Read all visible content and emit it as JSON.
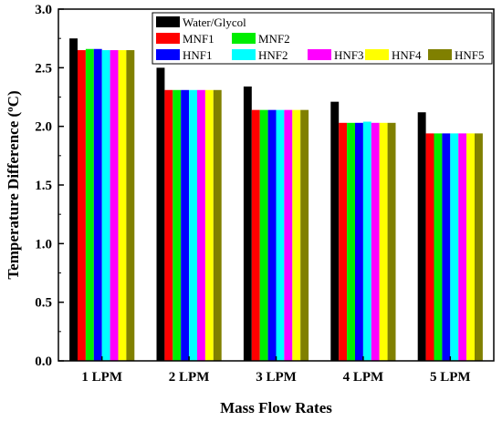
{
  "chart_data": {
    "type": "bar",
    "title": "",
    "xlabel": "Mass Flow Rates",
    "ylabel": "Temperature Difference (",
    "ylabel_sup": "o",
    "ylabel_unit": "C)",
    "categories": [
      "1 LPM",
      "2 LPM",
      "3 LPM",
      "4 LPM",
      "5 LPM"
    ],
    "ylim": [
      0.0,
      3.0
    ],
    "yticks": [
      "0.0",
      "0.5",
      "1.0",
      "1.5",
      "2.0",
      "2.5",
      "3.0"
    ],
    "grid": false,
    "legend_position": "top-right",
    "series": [
      {
        "name": "Water/Glycol",
        "color": "#000000",
        "values": [
          2.75,
          2.5,
          2.34,
          2.21,
          2.12
        ]
      },
      {
        "name": "MNF1",
        "color": "#ff0000",
        "values": [
          2.65,
          2.31,
          2.14,
          2.03,
          1.94
        ]
      },
      {
        "name": "MNF2",
        "color": "#00ee00",
        "values": [
          2.66,
          2.31,
          2.14,
          2.03,
          1.94
        ]
      },
      {
        "name": "HNF1",
        "color": "#0000ff",
        "values": [
          2.66,
          2.31,
          2.14,
          2.03,
          1.94
        ]
      },
      {
        "name": "HNF2",
        "color": "#00ffff",
        "values": [
          2.65,
          2.31,
          2.14,
          2.04,
          1.94
        ]
      },
      {
        "name": "HNF3",
        "color": "#ff00ff",
        "values": [
          2.65,
          2.31,
          2.14,
          2.03,
          1.94
        ]
      },
      {
        "name": "HNF4",
        "color": "#ffff00",
        "values": [
          2.65,
          2.31,
          2.14,
          2.03,
          1.94
        ]
      },
      {
        "name": "HNF5",
        "color": "#808000",
        "values": [
          2.65,
          2.31,
          2.14,
          2.03,
          1.94
        ]
      }
    ]
  }
}
